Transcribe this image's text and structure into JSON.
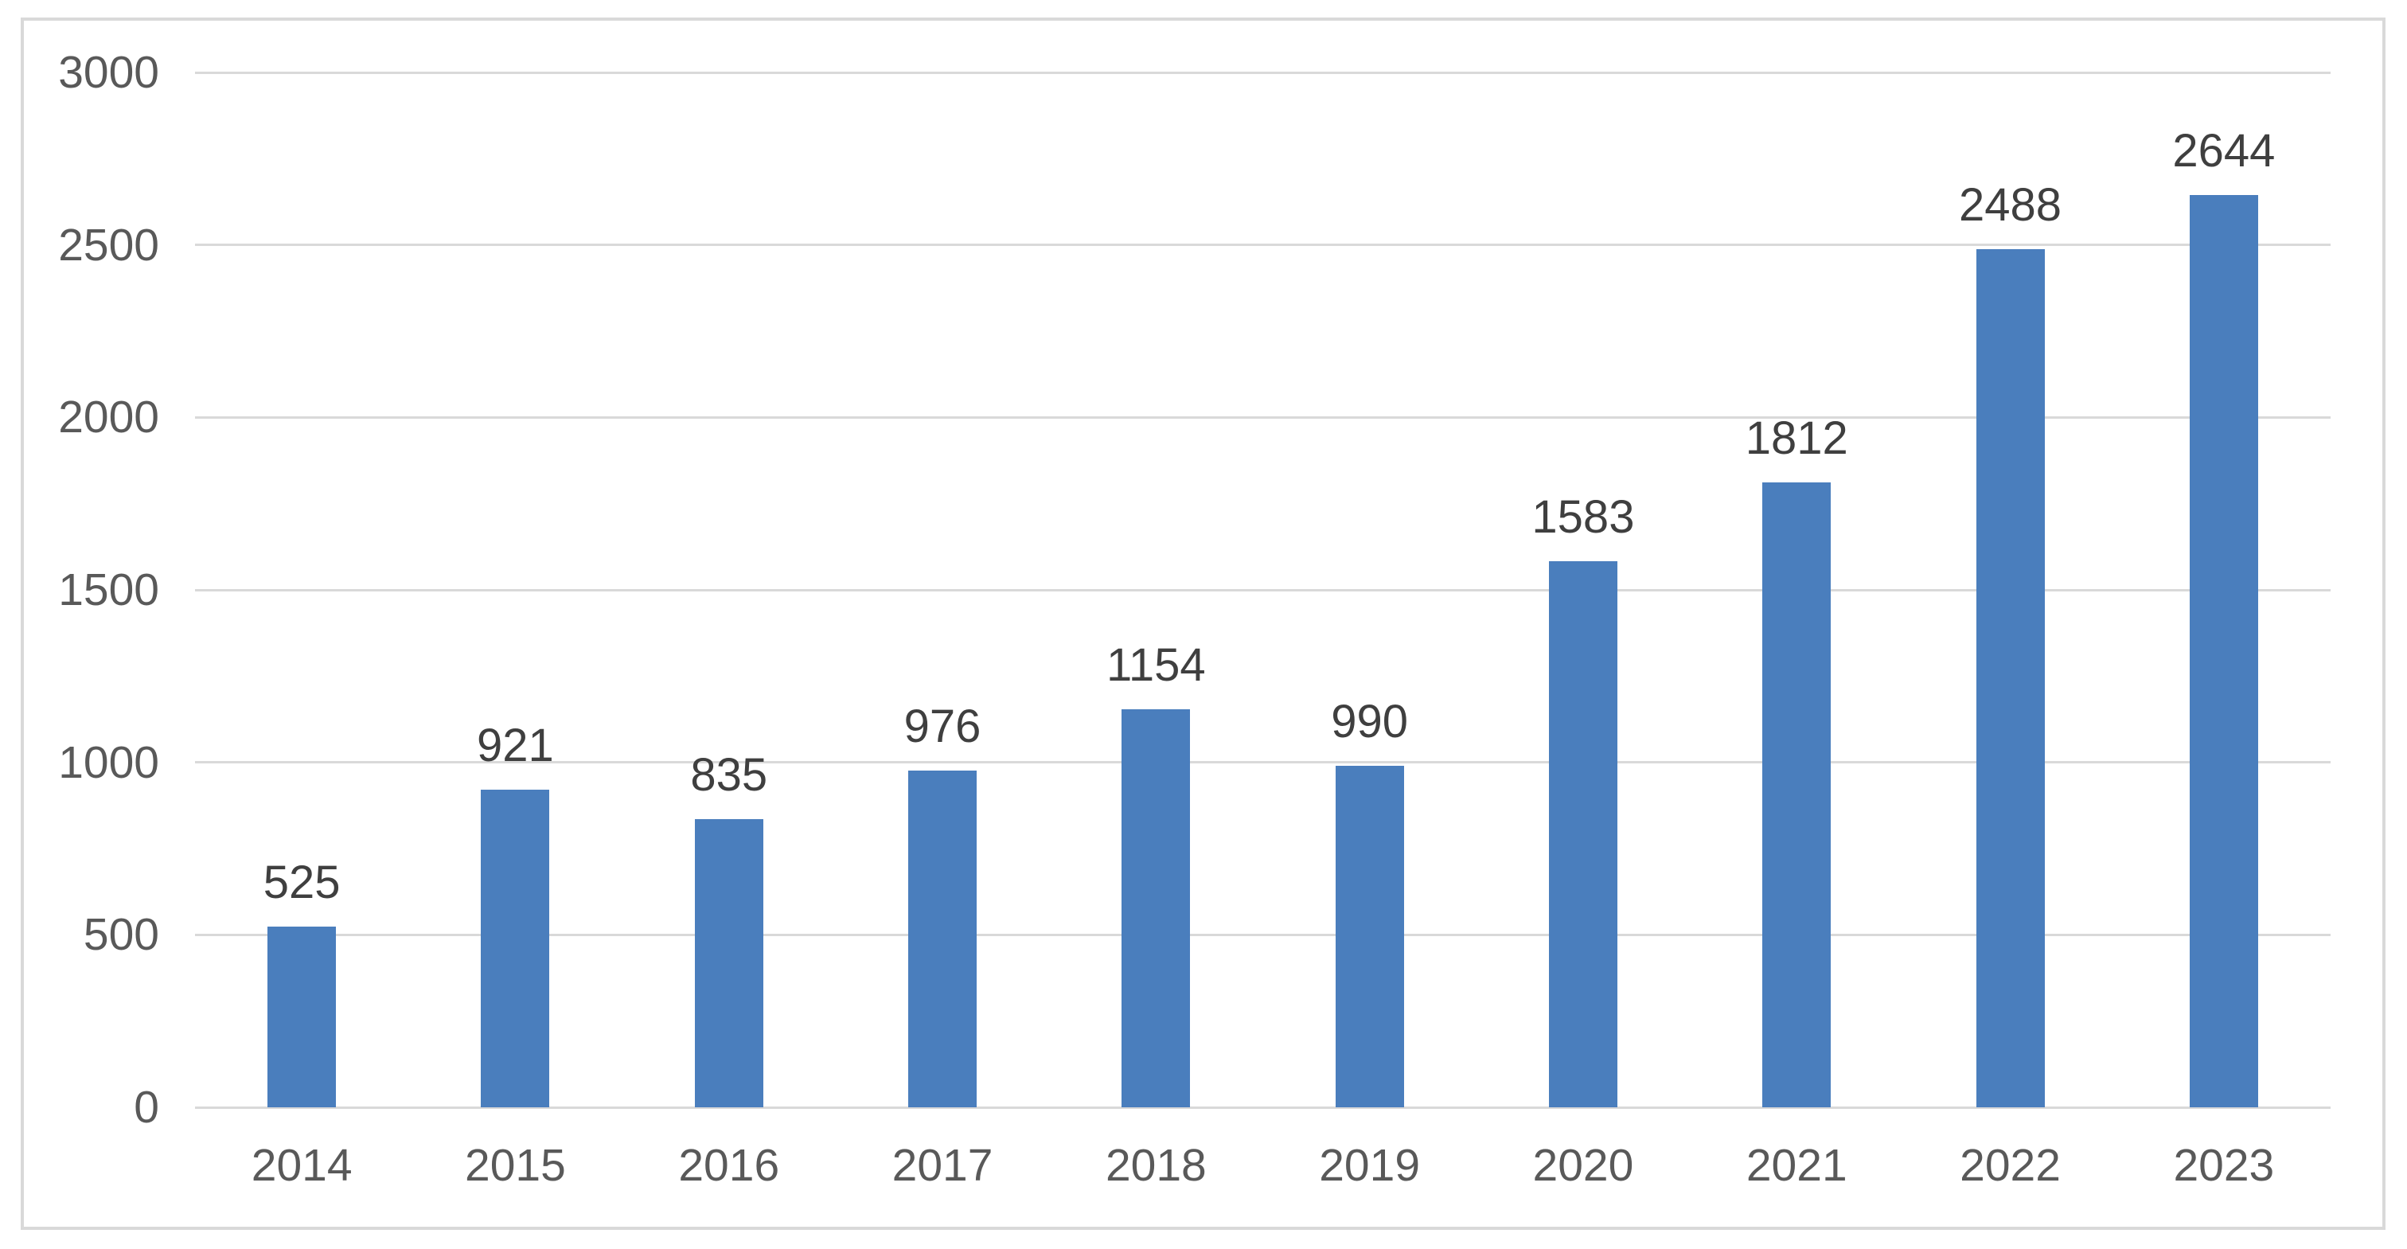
{
  "chart_data": {
    "type": "bar",
    "title": "",
    "xlabel": "",
    "ylabel": "",
    "categories": [
      "2014",
      "2015",
      "2016",
      "2017",
      "2018",
      "2019",
      "2020",
      "2021",
      "2022",
      "2023"
    ],
    "values": [
      525,
      921,
      835,
      976,
      1154,
      990,
      1583,
      1812,
      2488,
      2644
    ],
    "data_labels": [
      "525",
      "921",
      "835",
      "976",
      "1154",
      "990",
      "1583",
      "1812",
      "2488",
      "2644"
    ],
    "ylim": [
      0,
      3000
    ],
    "yticks": [
      "0",
      "500",
      "1000",
      "1500",
      "2000",
      "2500",
      "3000"
    ],
    "grid": true,
    "legend": false,
    "legend_position": "none"
  },
  "colors": {
    "bar_fill": "#4A7EBD",
    "gridline": "#D9D9D9",
    "frame_border": "#D9D9D9",
    "axis_label": "#595959",
    "data_label": "#3F3F3F",
    "background": "#FFFFFF"
  }
}
